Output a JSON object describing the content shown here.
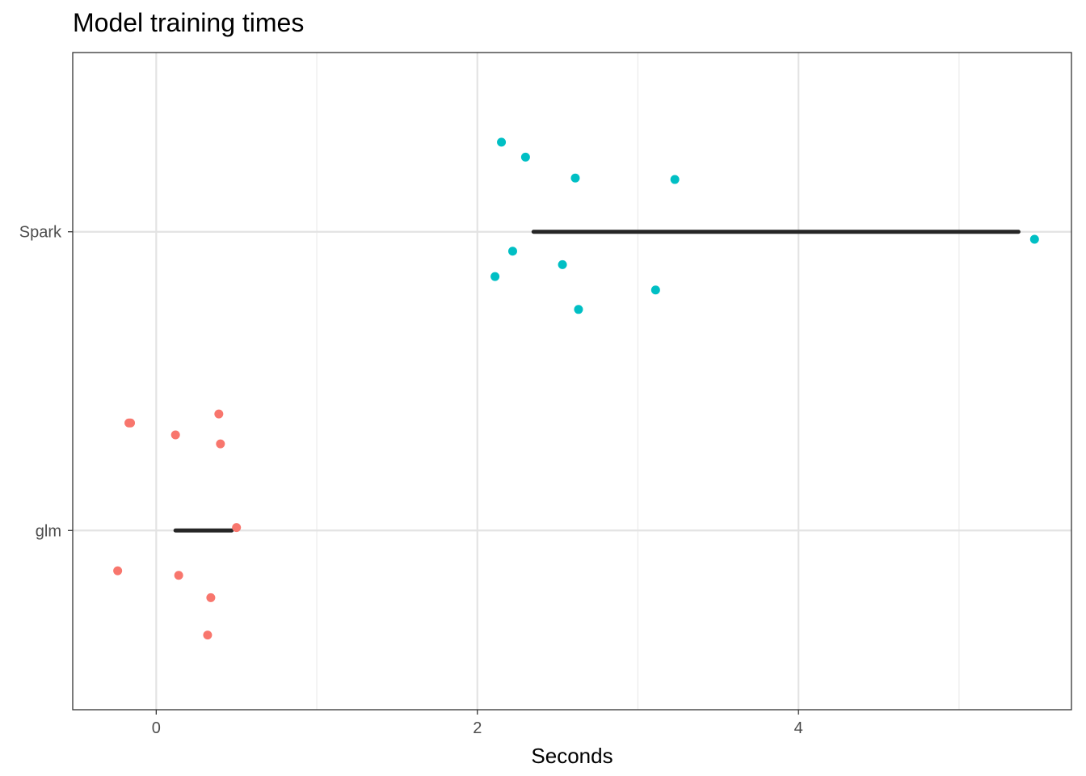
{
  "chart_data": {
    "type": "scatter",
    "title": "Model training times",
    "xlabel": "Seconds",
    "ylabel": "",
    "xlim": [
      -0.52,
      5.7
    ],
    "x_ticks": [
      0,
      2,
      4
    ],
    "x_tick_labels": [
      "0",
      "2",
      "4"
    ],
    "x_minor_ticks": [
      1,
      3,
      5
    ],
    "categories": [
      "glm",
      "Spark"
    ],
    "grid": true,
    "legend": "none",
    "series": [
      {
        "category": "glm",
        "color": "#F8766D",
        "points": [
          {
            "x": -0.17,
            "jitter": 0.36
          },
          {
            "x": -0.16,
            "jitter": 0.36
          },
          {
            "x": 0.12,
            "jitter": 0.32
          },
          {
            "x": 0.39,
            "jitter": 0.39
          },
          {
            "x": 0.4,
            "jitter": 0.29
          },
          {
            "x": 0.5,
            "jitter": 0.01
          },
          {
            "x": -0.24,
            "jitter": -0.135
          },
          {
            "x": 0.14,
            "jitter": -0.15
          },
          {
            "x": 0.34,
            "jitter": -0.225
          },
          {
            "x": 0.32,
            "jitter": -0.35
          }
        ],
        "summary": {
          "start": 0.12,
          "end": 0.47
        }
      },
      {
        "category": "Spark",
        "color": "#00BFC4",
        "points": [
          {
            "x": 2.15,
            "jitter": 0.3
          },
          {
            "x": 2.3,
            "jitter": 0.25
          },
          {
            "x": 2.61,
            "jitter": 0.18
          },
          {
            "x": 3.23,
            "jitter": 0.175
          },
          {
            "x": 5.47,
            "jitter": -0.025
          },
          {
            "x": 2.22,
            "jitter": -0.065
          },
          {
            "x": 2.53,
            "jitter": -0.11
          },
          {
            "x": 2.11,
            "jitter": -0.15
          },
          {
            "x": 3.11,
            "jitter": -0.195
          },
          {
            "x": 2.63,
            "jitter": -0.26
          }
        ],
        "summary": {
          "start": 2.35,
          "end": 5.37
        }
      }
    ]
  }
}
